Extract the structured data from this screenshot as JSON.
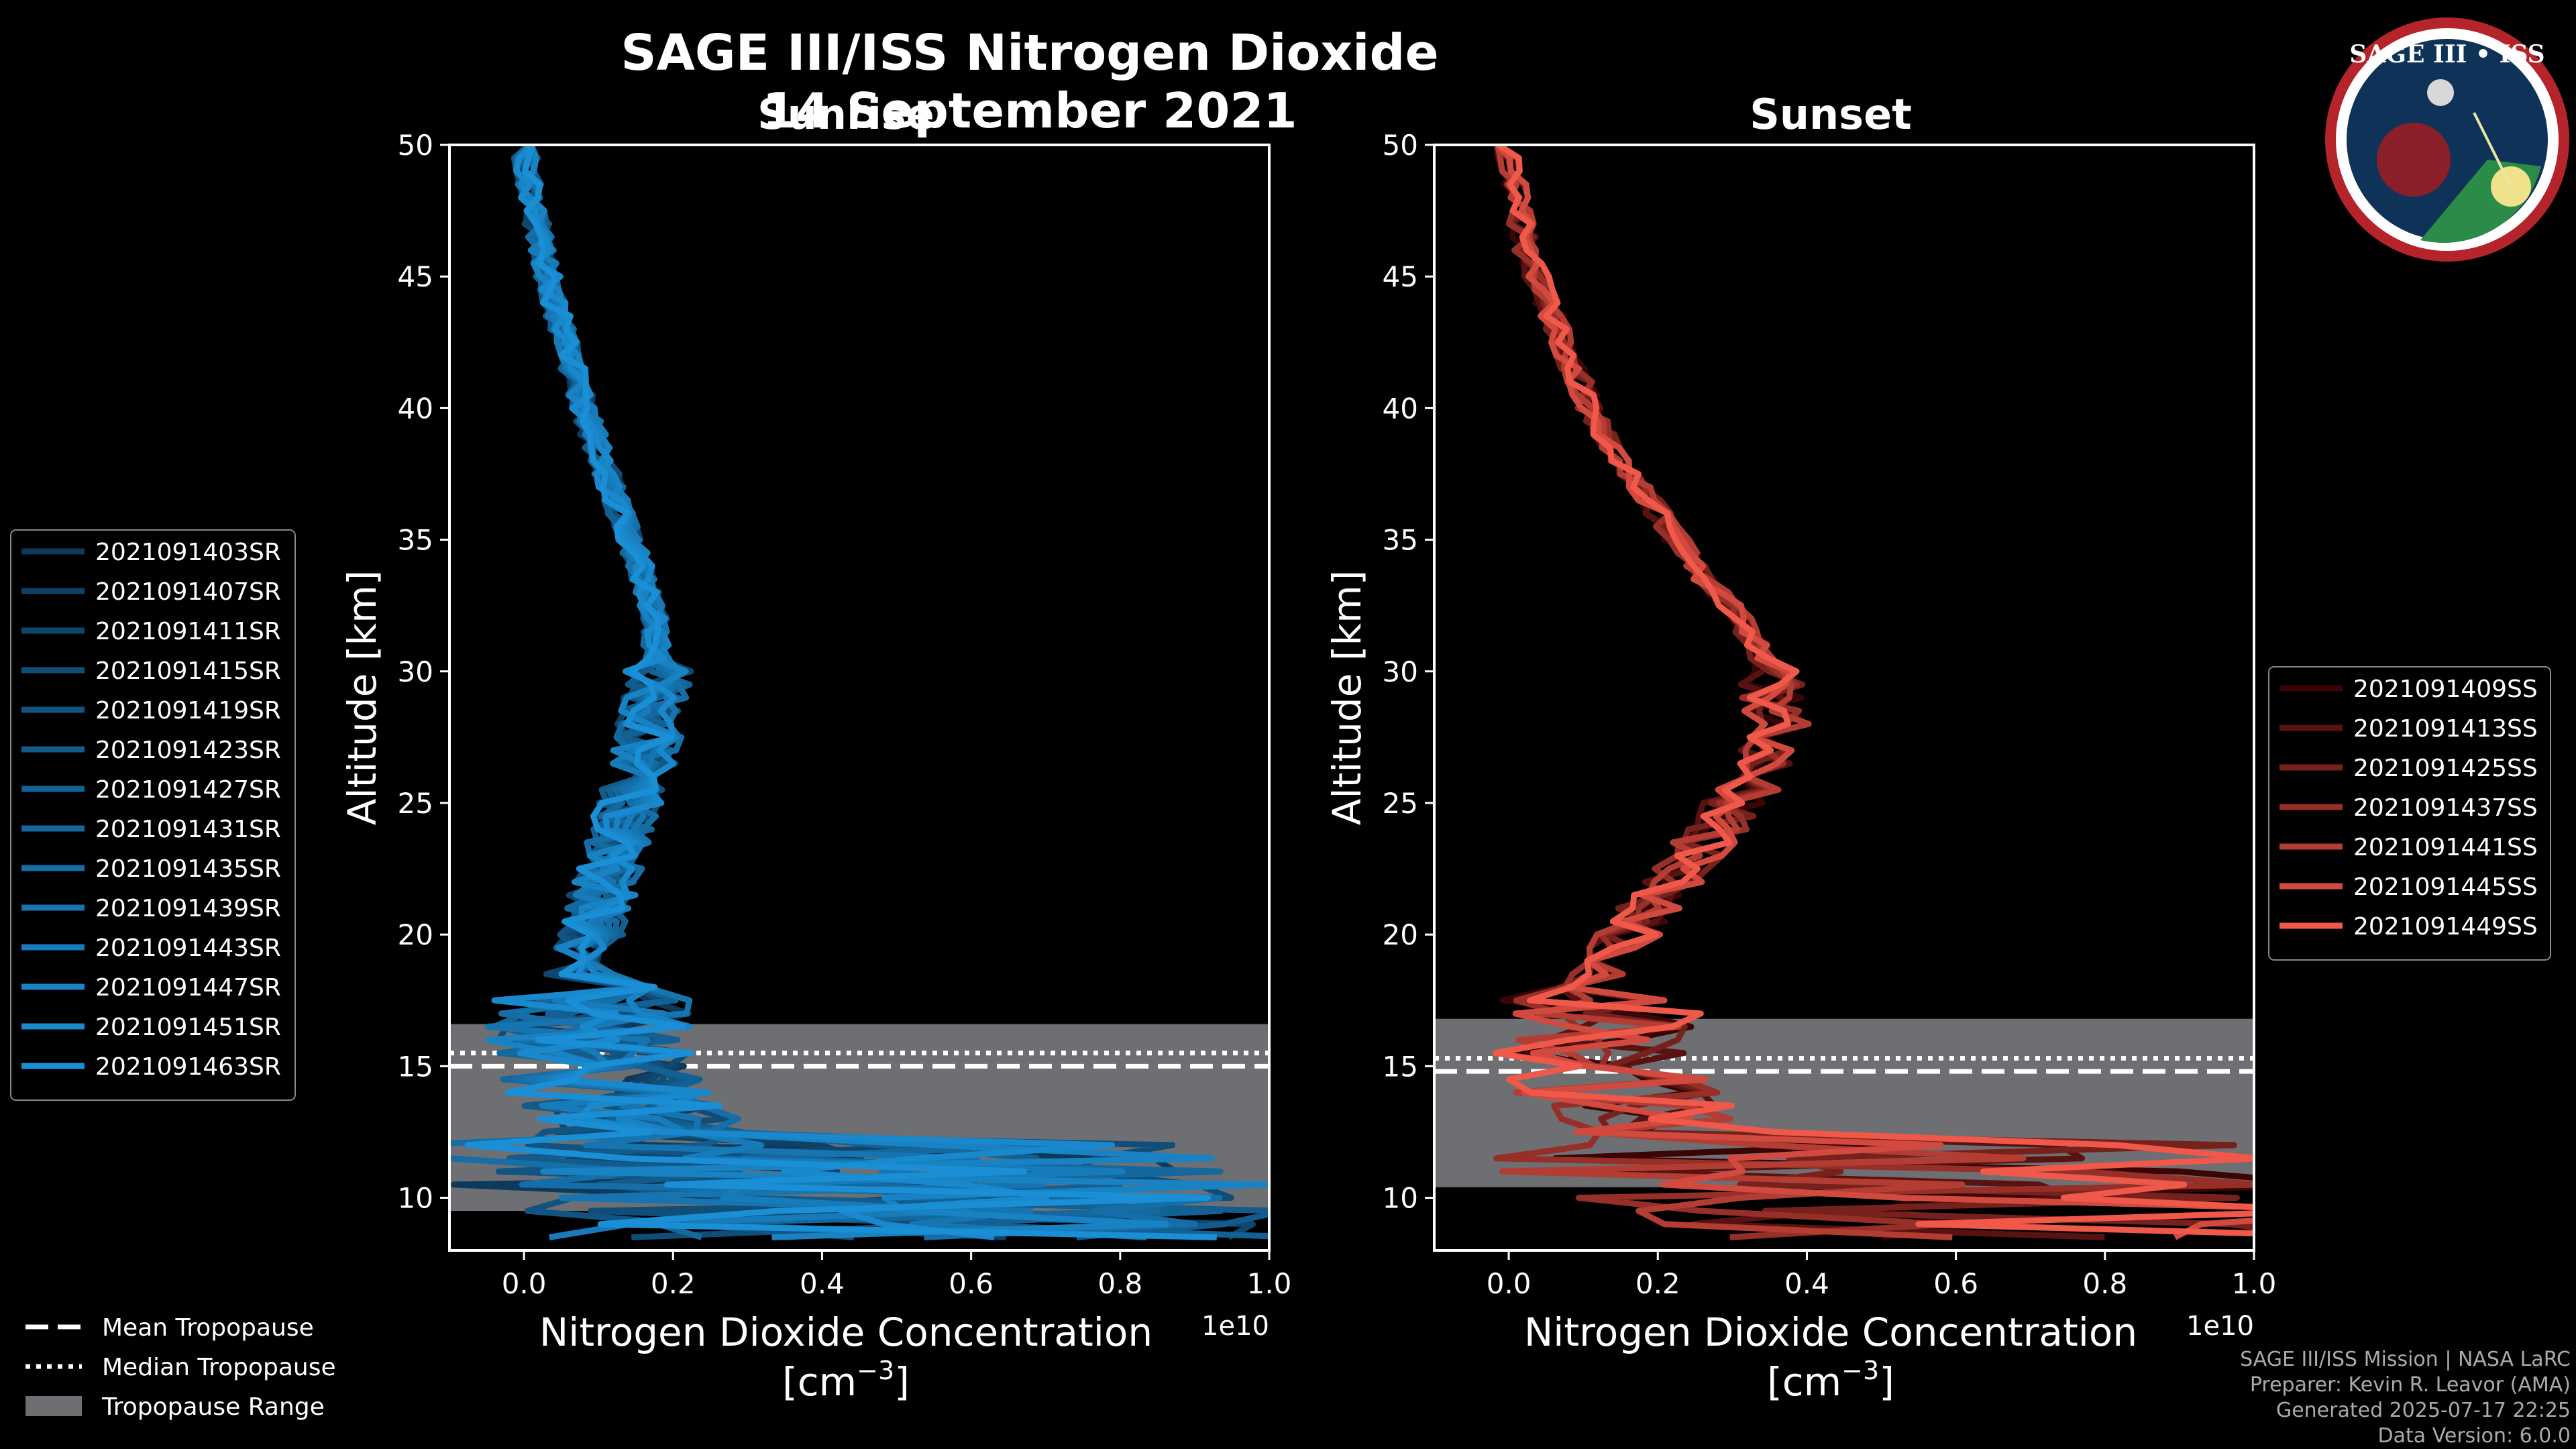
{
  "title": "SAGE III/ISS Nitrogen Dioxide",
  "date": "14 September 2021",
  "logo": {
    "text": "SAGE III • ISS"
  },
  "credits": [
    "SAGE III/ISS Mission | NASA LaRC",
    "Preparer: Kevin R. Leavor (AMA)",
    "Generated 2025-07-17 22:25",
    "Data Version: 6.0.0"
  ],
  "tropopause_legend": [
    {
      "label": "Mean Tropopause",
      "style": "dashed"
    },
    {
      "label": "Median Tropopause",
      "style": "dotted"
    },
    {
      "label": "Tropopause Range",
      "style": "patch"
    }
  ],
  "chart_data": [
    {
      "type": "line",
      "panel": "Sunrise",
      "title": "Sunrise",
      "xlabel": "Nitrogen Dioxide Concentration",
      "xlabel_unit": "[cm",
      "xlabel_exp": "−3",
      "xlabel_close": "]",
      "x_offset_label": "1e10",
      "ylabel": "Altitude [km]",
      "xlim": [
        -0.1,
        1.0
      ],
      "ylim": [
        8,
        50
      ],
      "xticks": [
        "0.0",
        "0.2",
        "0.4",
        "0.6",
        "0.8",
        "1.0"
      ],
      "xtick_values": [
        0.0,
        0.2,
        0.4,
        0.6,
        0.8,
        1.0
      ],
      "yticks": [
        "10",
        "15",
        "20",
        "25",
        "30",
        "35",
        "40",
        "45",
        "50"
      ],
      "ytick_values": [
        10,
        15,
        20,
        25,
        30,
        35,
        40,
        45,
        50
      ],
      "tropopause": {
        "mean": 15.0,
        "median": 15.5,
        "range": [
          9.5,
          16.6
        ]
      },
      "colors": {
        "dark": "#0d3a5c",
        "light": "#1a8fd6"
      },
      "profile_altitudes": [
        50,
        48,
        46,
        44,
        42,
        40,
        38,
        36,
        34,
        32,
        30,
        28,
        26,
        24,
        22,
        20,
        18,
        17,
        16,
        15,
        14,
        13,
        12,
        11,
        10,
        9,
        8.5
      ],
      "mean_profile": [
        0.0,
        0.01,
        0.025,
        0.04,
        0.06,
        0.08,
        0.105,
        0.13,
        0.155,
        0.175,
        0.18,
        0.17,
        0.155,
        0.13,
        0.11,
        0.09,
        0.07,
        0.06,
        0.06,
        0.07,
        0.09,
        0.12,
        0.15,
        0.2,
        0.25,
        0.3,
        0.35
      ],
      "series": [
        {
          "name": "2021091403SR"
        },
        {
          "name": "2021091407SR"
        },
        {
          "name": "2021091411SR"
        },
        {
          "name": "2021091415SR"
        },
        {
          "name": "2021091419SR"
        },
        {
          "name": "2021091423SR"
        },
        {
          "name": "2021091427SR"
        },
        {
          "name": "2021091431SR"
        },
        {
          "name": "2021091435SR"
        },
        {
          "name": "2021091439SR"
        },
        {
          "name": "2021091443SR"
        },
        {
          "name": "2021091447SR"
        },
        {
          "name": "2021091451SR"
        },
        {
          "name": "2021091463SR"
        }
      ],
      "legend_position": "left"
    },
    {
      "type": "line",
      "panel": "Sunset",
      "title": "Sunset",
      "xlabel": "Nitrogen Dioxide Concentration",
      "xlabel_unit": "[cm",
      "xlabel_exp": "−3",
      "xlabel_close": "]",
      "x_offset_label": "1e10",
      "ylabel": "Altitude [km]",
      "xlim": [
        -0.1,
        1.0
      ],
      "ylim": [
        8,
        50
      ],
      "xticks": [
        "0.0",
        "0.2",
        "0.4",
        "0.6",
        "0.8",
        "1.0"
      ],
      "xtick_values": [
        0.0,
        0.2,
        0.4,
        0.6,
        0.8,
        1.0
      ],
      "yticks": [
        "10",
        "15",
        "20",
        "25",
        "30",
        "35",
        "40",
        "45",
        "50"
      ],
      "ytick_values": [
        10,
        15,
        20,
        25,
        30,
        35,
        40,
        45,
        50
      ],
      "tropopause": {
        "mean": 14.8,
        "median": 15.3,
        "range": [
          10.4,
          16.8
        ]
      },
      "colors": {
        "dark": "#3a0505",
        "light": "#f0584a"
      },
      "profile_altitudes": [
        50,
        48,
        46,
        44,
        42,
        40,
        38,
        36,
        34,
        32,
        30,
        28,
        26,
        24,
        22,
        20,
        18,
        17,
        16,
        15,
        14,
        13,
        12,
        11,
        10,
        9,
        8.5
      ],
      "mean_profile": [
        0.0,
        0.01,
        0.025,
        0.05,
        0.08,
        0.11,
        0.15,
        0.2,
        0.25,
        0.31,
        0.35,
        0.36,
        0.33,
        0.28,
        0.22,
        0.16,
        0.11,
        0.09,
        0.08,
        0.09,
        0.12,
        0.16,
        0.22,
        0.3,
        0.4,
        0.5,
        0.55
      ],
      "series": [
        {
          "name": "2021091409SS"
        },
        {
          "name": "2021091413SS"
        },
        {
          "name": "2021091425SS"
        },
        {
          "name": "2021091437SS"
        },
        {
          "name": "2021091441SS"
        },
        {
          "name": "2021091445SS"
        },
        {
          "name": "2021091449SS"
        }
      ],
      "legend_position": "right"
    }
  ]
}
